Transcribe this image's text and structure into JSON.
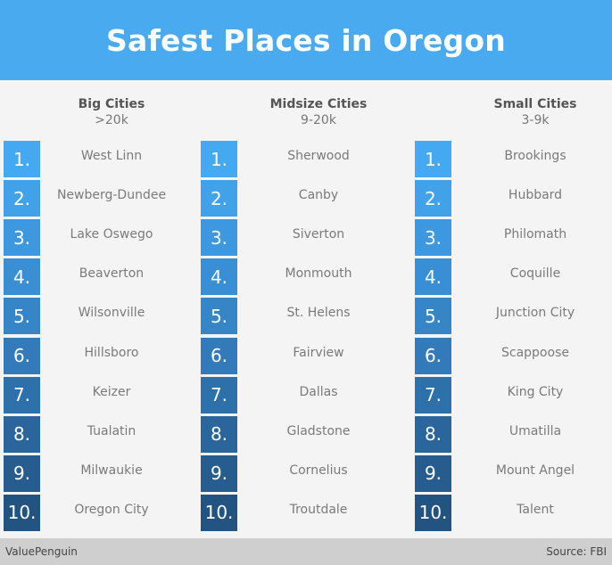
{
  "title": "Safest Places in Oregon",
  "columns": [
    {
      "title": "Big Cities",
      "subtitle": ">20k",
      "ranks": [
        "1.",
        "2.",
        "3.",
        "4.",
        "5.",
        "6.",
        "7.",
        "8.",
        "9.",
        "10."
      ],
      "cities": [
        "West Linn",
        "Newberg-Dundee",
        "Lake Oswego",
        "Beaverton",
        "Wilsonville",
        "Hillsboro",
        "Keizer",
        "Tualatin",
        "Milwaukie",
        "Oregon City"
      ]
    },
    {
      "title": "Midsize Cities",
      "subtitle": "9-20k",
      "ranks": [
        "1.",
        "2.",
        "3.",
        "4.",
        "5.",
        "6.",
        "7.",
        "8.",
        "9.",
        "10."
      ],
      "cities": [
        "Sherwood",
        "Canby",
        "Siverton",
        "Monmouth",
        "St. Helens",
        "Fairview",
        "Dallas",
        "Gladstone",
        "Cornelius",
        "Troutdale"
      ]
    },
    {
      "title": "Small Cities",
      "subtitle": "3-9k",
      "ranks": [
        "1.",
        "2.",
        "3.",
        "4.",
        "5.",
        "6.",
        "7.",
        "8.",
        "9.",
        "10."
      ],
      "cities": [
        "Brookings",
        "Hubbard",
        "Philomath",
        "Coquille",
        "Junction City",
        "Scappoose",
        "King City",
        "Umatilla",
        "Mount Angel",
        "Talent"
      ]
    }
  ],
  "rank_colors": [
    "#45a9f1",
    "#41a1e9",
    "#3d98e0",
    "#3a8fd4",
    "#3685c7",
    "#327ab9",
    "#2e70aa",
    "#2a669c",
    "#265c8e",
    "#225381"
  ],
  "footer": {
    "brand": "ValuePenguin",
    "source": "Source: FBI"
  }
}
